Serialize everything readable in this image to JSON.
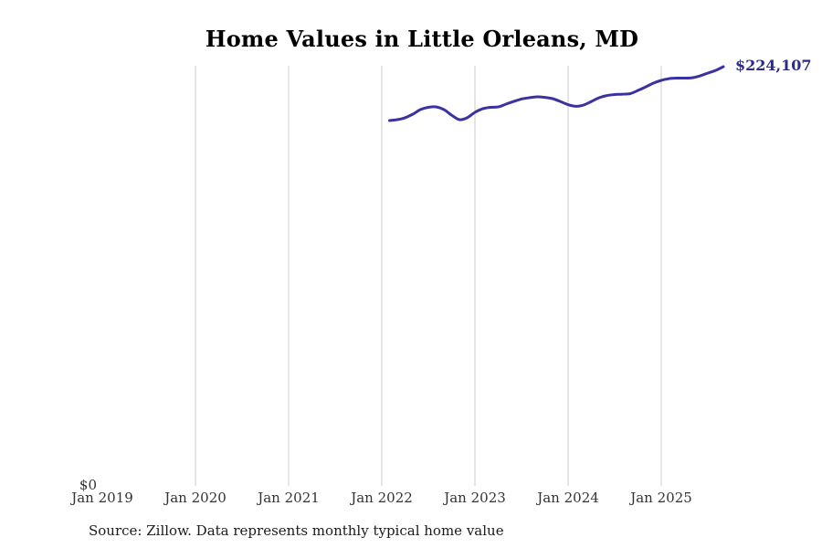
{
  "chart": {
    "title": "Home Values in Little Orleans, MD",
    "y_zero_label": "$0",
    "end_value_label": "$224,107",
    "source_note": "Source: Zillow. Data represents monthly typical home value",
    "colors": {
      "line": "#3a32a1",
      "end_label_text": "#2d2b87",
      "gridline": "#cccccc",
      "axis_text": "#333333",
      "title_text": "#000000",
      "source_text": "#1b1b1b",
      "background": "#ffffff"
    }
  },
  "chart_data": {
    "type": "line",
    "title": "Home Values in Little Orleans, MD",
    "xlabel": "",
    "ylabel": "",
    "legend": "none",
    "grid": "vertical-yearly",
    "xlim": [
      "Jan 2019",
      "Oct 2025"
    ],
    "ylim": [
      0,
      225000
    ],
    "x_ticks": [
      {
        "label": "Jan 2019",
        "month": "2019-01",
        "gridline": false
      },
      {
        "label": "Jan 2020",
        "month": "2020-01",
        "gridline": true
      },
      {
        "label": "Jan 2021",
        "month": "2021-01",
        "gridline": true
      },
      {
        "label": "Jan 2022",
        "month": "2022-01",
        "gridline": true
      },
      {
        "label": "Jan 2023",
        "month": "2023-01",
        "gridline": true
      },
      {
        "label": "Jan 2024",
        "month": "2024-01",
        "gridline": true
      },
      {
        "label": "Jan 2025",
        "month": "2025-01",
        "gridline": true
      }
    ],
    "annotations": [
      {
        "text": "$224,107",
        "position": "line-end"
      },
      {
        "text": "$0",
        "position": "y-axis-bottom"
      }
    ],
    "series": [
      {
        "name": "Typical home value",
        "x": [
          "2022-02",
          "2022-03",
          "2022-04",
          "2022-05",
          "2022-06",
          "2022-07",
          "2022-08",
          "2022-09",
          "2022-10",
          "2022-11",
          "2022-12",
          "2023-01",
          "2023-02",
          "2023-03",
          "2023-04",
          "2023-05",
          "2023-06",
          "2023-07",
          "2023-08",
          "2023-09",
          "2023-10",
          "2023-11",
          "2023-12",
          "2024-01",
          "2024-02",
          "2024-03",
          "2024-04",
          "2024-05",
          "2024-06",
          "2024-07",
          "2024-08",
          "2024-09",
          "2024-10",
          "2024-11",
          "2024-12",
          "2025-01",
          "2025-02",
          "2025-03",
          "2025-04",
          "2025-05",
          "2025-06",
          "2025-07",
          "2025-08",
          "2025-09"
        ],
        "values": [
          195300,
          195800,
          196800,
          198700,
          201200,
          202400,
          202600,
          201200,
          198200,
          195800,
          196800,
          199700,
          201600,
          202400,
          202600,
          204100,
          205500,
          206800,
          207500,
          208000,
          207700,
          207000,
          205500,
          203800,
          202900,
          203600,
          205500,
          207500,
          208700,
          209200,
          209400,
          209700,
          211400,
          213300,
          215300,
          216800,
          217700,
          218000,
          218000,
          218200,
          219200,
          220700,
          222100,
          224107
        ]
      }
    ]
  }
}
